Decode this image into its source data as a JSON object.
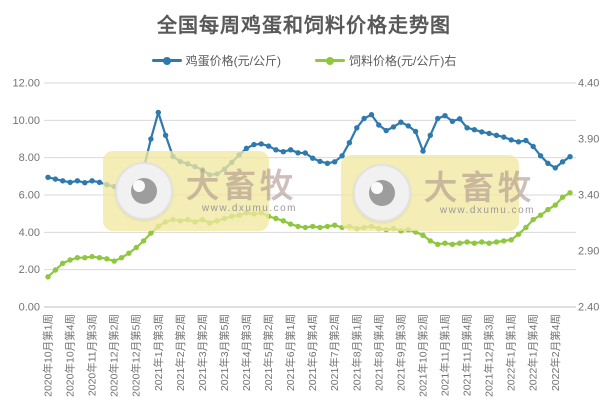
{
  "title": "全国每周鸡蛋和饲料价格走势图",
  "legend": [
    {
      "label": "鸡蛋价格(元/公斤)",
      "color": "#2E79AD"
    },
    {
      "label": "饲料价格(元/公斤)右",
      "color": "#8FC73E"
    }
  ],
  "watermark": {
    "brand": "大畜牧",
    "url": "www.dxumu.com"
  },
  "colors": {
    "egg_line": "#2E79AD",
    "feed_line": "#8FC73E",
    "gridline": "#d9d9d9",
    "axis_line": "#bfbfbf",
    "tick_text": "#737373",
    "title_text": "#595959"
  },
  "chart_data": {
    "type": "line",
    "title": "全国每周鸡蛋和饲料价格走势图",
    "grid": true,
    "legend_position": "top",
    "x_label_every": 3,
    "x_labels": [
      "2020年10月第1周",
      "2020年10月第4周",
      "2020年11月第3周",
      "2020年12月第2周",
      "2020年12月第5周",
      "2021年1月第3周",
      "2021年2月第2周",
      "2021年3月第2周",
      "2021年3月第5周",
      "2021年4月第3周",
      "2021年5月第2周",
      "2021年6月第1周",
      "2021年6月第4周",
      "2021年7月第2周",
      "2021年8月第1周",
      "2021年8月第4周",
      "2021年9月第3周",
      "2021年10月第2周",
      "2021年11月第1周",
      "2021年11月第4周",
      "2021年12月第3周",
      "2022年1月第1周",
      "2022年1月第4周",
      "2022年2月第4周"
    ],
    "left_axis": {
      "min": 0,
      "max": 12,
      "tick_values": [
        12,
        10,
        8,
        6,
        4,
        2,
        0
      ],
      "tick_labels": [
        "12.00",
        "10.00",
        "8.00",
        "6.00",
        "4.00",
        "2.00",
        "0.00"
      ]
    },
    "right_axis": {
      "min": 2.4,
      "max": 4.4,
      "tick_values": [
        4.4,
        3.9,
        3.4,
        2.9,
        2.4
      ],
      "tick_labels": [
        "4.40",
        "3.90",
        "3.40",
        "2.90",
        "2.40"
      ]
    },
    "series": [
      {
        "name": "鸡蛋价格(元/公斤)",
        "axis": "left",
        "color": "#2E79AD",
        "values": [
          6.95,
          6.85,
          6.76,
          6.68,
          6.76,
          6.66,
          6.76,
          6.68,
          6.55,
          6.45,
          6.6,
          6.8,
          7.0,
          7.4,
          9.0,
          10.42,
          9.2,
          8.06,
          7.79,
          7.67,
          7.52,
          7.35,
          7.08,
          7.13,
          7.38,
          7.75,
          8.15,
          8.5,
          8.7,
          8.74,
          8.62,
          8.42,
          8.32,
          8.42,
          8.26,
          8.25,
          7.97,
          7.8,
          7.7,
          7.78,
          8.1,
          8.8,
          9.6,
          10.1,
          10.3,
          9.75,
          9.45,
          9.65,
          9.9,
          9.7,
          9.4,
          8.35,
          9.2,
          10.1,
          10.25,
          9.95,
          10.08,
          9.6,
          9.5,
          9.38,
          9.3,
          9.2,
          9.1,
          8.95,
          8.85,
          8.92,
          8.6,
          8.1,
          7.7,
          7.45,
          7.78,
          8.05
        ]
      },
      {
        "name": "饲料价格(元/公斤)右",
        "axis": "right",
        "color": "#8FC73E",
        "values": [
          2.67,
          2.73,
          2.79,
          2.82,
          2.84,
          2.84,
          2.85,
          2.84,
          2.83,
          2.81,
          2.84,
          2.88,
          2.93,
          2.99,
          3.06,
          3.12,
          3.16,
          3.18,
          3.17,
          3.18,
          3.16,
          3.18,
          3.15,
          3.17,
          3.19,
          3.21,
          3.22,
          3.24,
          3.23,
          3.24,
          3.21,
          3.19,
          3.17,
          3.14,
          3.12,
          3.11,
          3.12,
          3.11,
          3.12,
          3.13,
          3.11,
          3.12,
          3.1,
          3.11,
          3.12,
          3.1,
          3.09,
          3.1,
          3.08,
          3.09,
          3.07,
          3.04,
          2.99,
          2.96,
          2.97,
          2.96,
          2.97,
          2.98,
          2.97,
          2.98,
          2.97,
          2.98,
          2.99,
          3.0,
          3.05,
          3.11,
          3.18,
          3.22,
          3.27,
          3.31,
          3.38,
          3.42
        ]
      }
    ]
  }
}
